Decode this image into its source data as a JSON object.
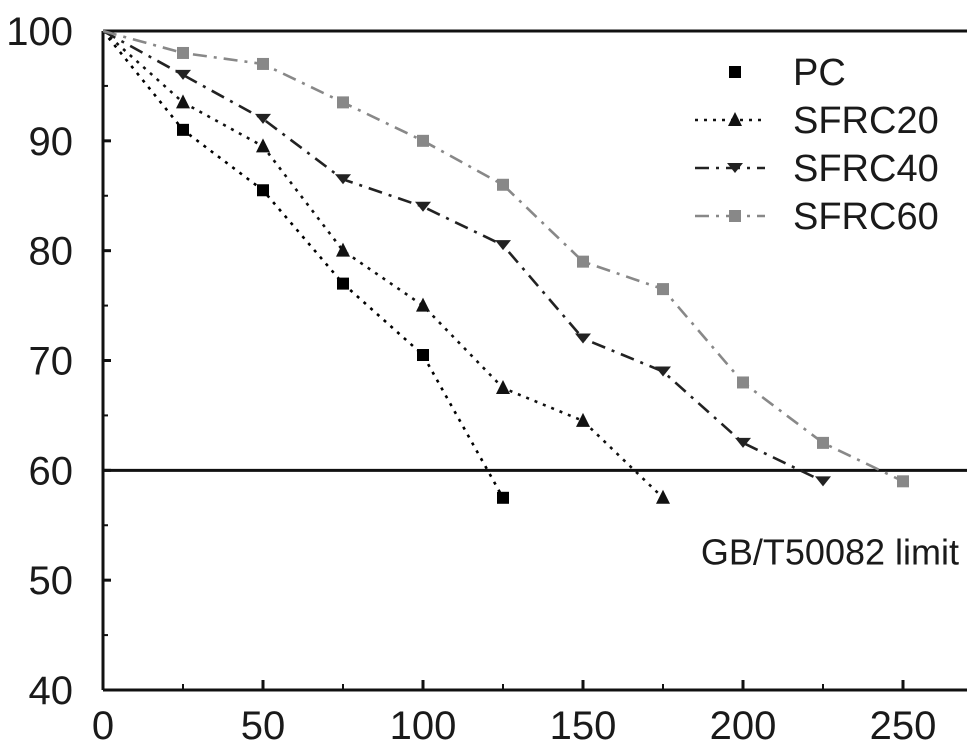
{
  "chart_data": {
    "type": "line",
    "title": "",
    "xlabel": "",
    "ylabel": "",
    "xlim": [
      0,
      270
    ],
    "ylim": [
      40,
      100
    ],
    "x_ticks": [
      0,
      50,
      100,
      150,
      200,
      250
    ],
    "y_ticks": [
      40,
      50,
      60,
      70,
      80,
      90,
      100
    ],
    "x_tick_labels": [
      "0",
      "50",
      "100",
      "150",
      "200",
      "250"
    ],
    "y_tick_labels": [
      "40",
      "50",
      "60",
      "70",
      "80",
      "90",
      "100"
    ],
    "grid": false,
    "legend_position": "top-right",
    "series": [
      {
        "name": "PC",
        "color": "#000000",
        "marker": "square",
        "line_style": "dotted",
        "points": [
          [
            0,
            100
          ],
          [
            25,
            91
          ],
          [
            50,
            85.5
          ],
          [
            75,
            77
          ],
          [
            100,
            70.5
          ],
          [
            125,
            57.5
          ]
        ]
      },
      {
        "name": "SFRC20",
        "color": "#111111",
        "marker": "triangle",
        "line_style": "dotted",
        "points": [
          [
            0,
            100
          ],
          [
            25,
            93.5
          ],
          [
            50,
            89.5
          ],
          [
            75,
            80
          ],
          [
            100,
            75
          ],
          [
            125,
            67.5
          ],
          [
            150,
            64.5
          ],
          [
            175,
            57.5
          ]
        ]
      },
      {
        "name": "SFRC40",
        "color": "#222222",
        "marker": "tri-down",
        "line_style": "dash-dot",
        "points": [
          [
            0,
            100
          ],
          [
            25,
            96
          ],
          [
            50,
            92
          ],
          [
            75,
            86.5
          ],
          [
            100,
            84
          ],
          [
            125,
            80.5
          ],
          [
            150,
            72
          ],
          [
            175,
            69
          ],
          [
            200,
            62.5
          ],
          [
            225,
            59
          ]
        ]
      },
      {
        "name": "SFRC60",
        "color": "#888888",
        "marker": "square",
        "line_style": "dash-dot",
        "points": [
          [
            0,
            100
          ],
          [
            25,
            98
          ],
          [
            50,
            97
          ],
          [
            75,
            93.5
          ],
          [
            100,
            90
          ],
          [
            125,
            86
          ],
          [
            150,
            79
          ],
          [
            175,
            76.5
          ],
          [
            200,
            68
          ],
          [
            225,
            62.5
          ],
          [
            250,
            59
          ]
        ]
      }
    ],
    "reference_lines": [
      {
        "axis": "y",
        "value": 60,
        "label": "GB/T50082 limit"
      }
    ]
  }
}
